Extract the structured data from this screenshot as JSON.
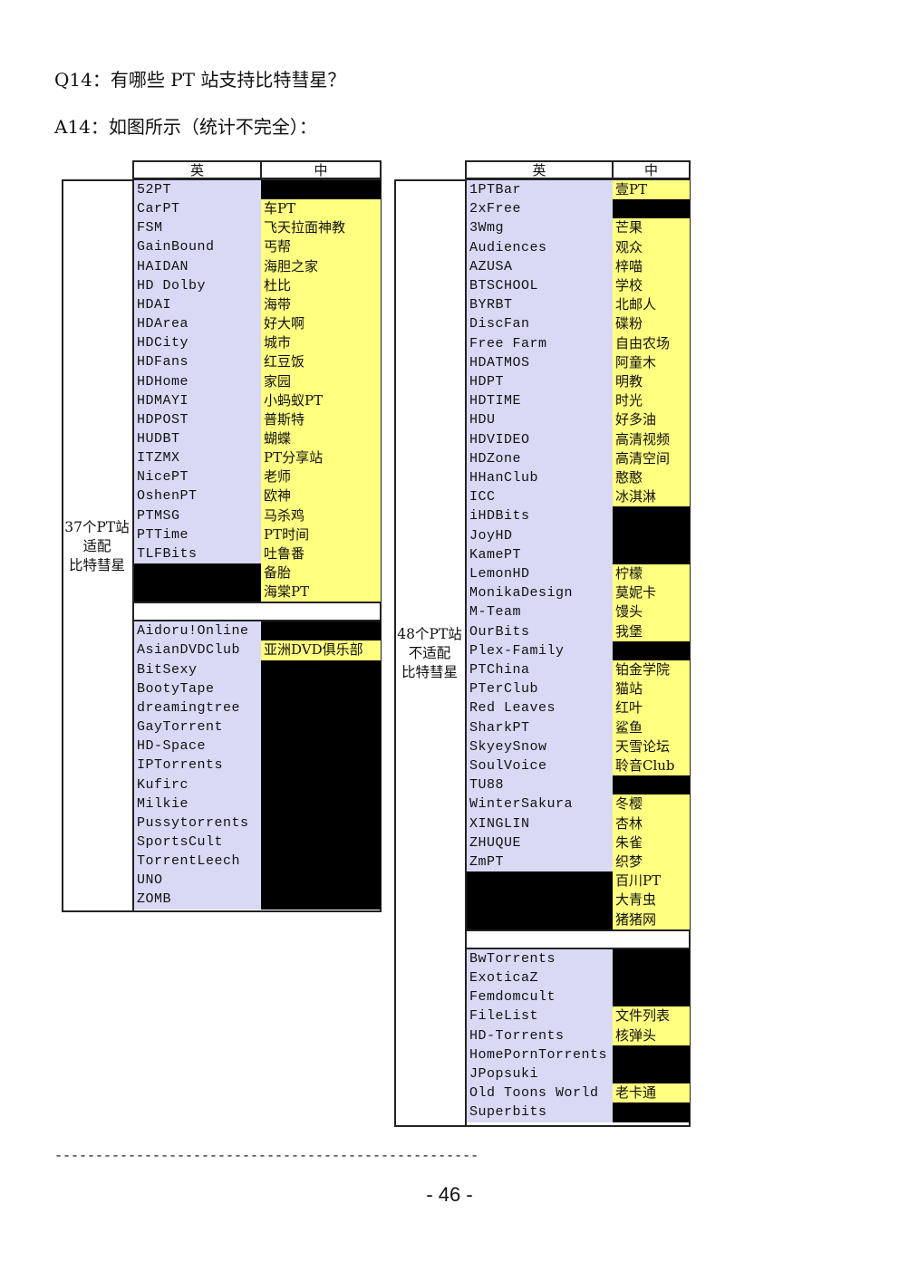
{
  "question": "Q14：有哪些 PT 站支持比特彗星？",
  "answer": "A14：如图所示（统计不完全）：",
  "header": {
    "en": "英",
    "zh": "中"
  },
  "left_table": {
    "label": "37个PT站\n适配\n比特彗星",
    "groups": [
      [
        [
          "52PT",
          null
        ],
        [
          "CarPT",
          "车PT"
        ],
        [
          "FSM",
          "飞天拉面神教"
        ],
        [
          "GainBound",
          "丐帮"
        ],
        [
          "HAIDAN",
          "海胆之家"
        ],
        [
          "HD Dolby",
          "杜比"
        ],
        [
          "HDAI",
          "海带"
        ],
        [
          "HDArea",
          "好大啊"
        ],
        [
          "HDCity",
          "城市"
        ],
        [
          "HDFans",
          "红豆饭"
        ],
        [
          "HDHome",
          "家园"
        ],
        [
          "HDMAYI",
          "小蚂蚁PT"
        ],
        [
          "HDPOST",
          "普斯特"
        ],
        [
          "HUDBT",
          "蝴蝶"
        ],
        [
          "ITZMX",
          "PT分享站"
        ],
        [
          "NicePT",
          "老师"
        ],
        [
          "OshenPT",
          "欧神"
        ],
        [
          "PTMSG",
          "马杀鸡"
        ],
        [
          "PTTime",
          "PT时间"
        ],
        [
          "TLFBits",
          "吐鲁番"
        ],
        [
          null,
          "备胎"
        ],
        [
          null,
          "海棠PT"
        ]
      ],
      [
        [
          "Aidoru!Online",
          null
        ],
        [
          "AsianDVDClub",
          "亚洲DVD俱乐部"
        ],
        [
          "BitSexy",
          null
        ],
        [
          "BootyTape",
          null
        ],
        [
          "dreamingtree",
          null
        ],
        [
          "GayTorrent",
          null
        ],
        [
          "HD-Space",
          null
        ],
        [
          "IPTorrents",
          null
        ],
        [
          "Kufirc",
          null
        ],
        [
          "Milkie",
          null
        ],
        [
          "Pussytorrents",
          null
        ],
        [
          "SportsCult",
          null
        ],
        [
          "TorrentLeech",
          null
        ],
        [
          "UNO",
          null
        ],
        [
          "ZOMB",
          null
        ]
      ]
    ]
  },
  "right_table": {
    "label": "48个PT站\n不适配\n比特彗星",
    "groups": [
      [
        [
          "1PTBar",
          "壹PT"
        ],
        [
          "2xFree",
          null
        ],
        [
          "3Wmg",
          "芒果"
        ],
        [
          "Audiences",
          "观众"
        ],
        [
          "AZUSA",
          "梓喵"
        ],
        [
          "BTSCHOOL",
          "学校"
        ],
        [
          "BYRBT",
          "北邮人"
        ],
        [
          "DiscFan",
          "碟粉"
        ],
        [
          "Free Farm",
          "自由农场"
        ],
        [
          "HDATMOS",
          "阿童木"
        ],
        [
          "HDPT",
          "明教"
        ],
        [
          "HDTIME",
          "时光"
        ],
        [
          "HDU",
          "好多油"
        ],
        [
          "HDVIDEO",
          "高清视频"
        ],
        [
          "HDZone",
          "高清空间"
        ],
        [
          "HHanClub",
          "憨憨"
        ],
        [
          "ICC",
          "冰淇淋"
        ],
        [
          "iHDBits",
          null
        ],
        [
          "JoyHD",
          null
        ],
        [
          "KamePT",
          null
        ],
        [
          "LemonHD",
          "柠檬"
        ],
        [
          "MonikaDesign",
          "莫妮卡"
        ],
        [
          "M-Team",
          "馒头"
        ],
        [
          "OurBits",
          "我堡"
        ],
        [
          "Plex-Family",
          null
        ],
        [
          "PTChina",
          "铂金学院"
        ],
        [
          "PTerClub",
          "猫站"
        ],
        [
          "Red Leaves",
          "红叶"
        ],
        [
          "SharkPT",
          "鲨鱼"
        ],
        [
          "SkyeySnow",
          "天雪论坛"
        ],
        [
          "SoulVoice",
          "聆音Club"
        ],
        [
          "TU88",
          null
        ],
        [
          "WinterSakura",
          "冬樱"
        ],
        [
          "XINGLIN",
          "杏林"
        ],
        [
          "ZHUQUE",
          "朱雀"
        ],
        [
          "ZmPT",
          "织梦"
        ],
        [
          null,
          "百川PT"
        ],
        [
          null,
          "大青虫"
        ],
        [
          null,
          "猪猪网"
        ]
      ],
      [
        [
          "BwTorrents",
          null
        ],
        [
          "ExoticaZ",
          null
        ],
        [
          "Femdomcult",
          null
        ],
        [
          "FileList",
          "文件列表"
        ],
        [
          "HD-Torrents",
          "核弹头"
        ],
        [
          "HomePornTorrents",
          null
        ],
        [
          "JPopsuki",
          null
        ],
        [
          "Old Toons World",
          "老卡通"
        ],
        [
          "Superbits",
          null
        ]
      ]
    ]
  },
  "divider": "----------------------------------------------------",
  "page_number": "- 46 -"
}
